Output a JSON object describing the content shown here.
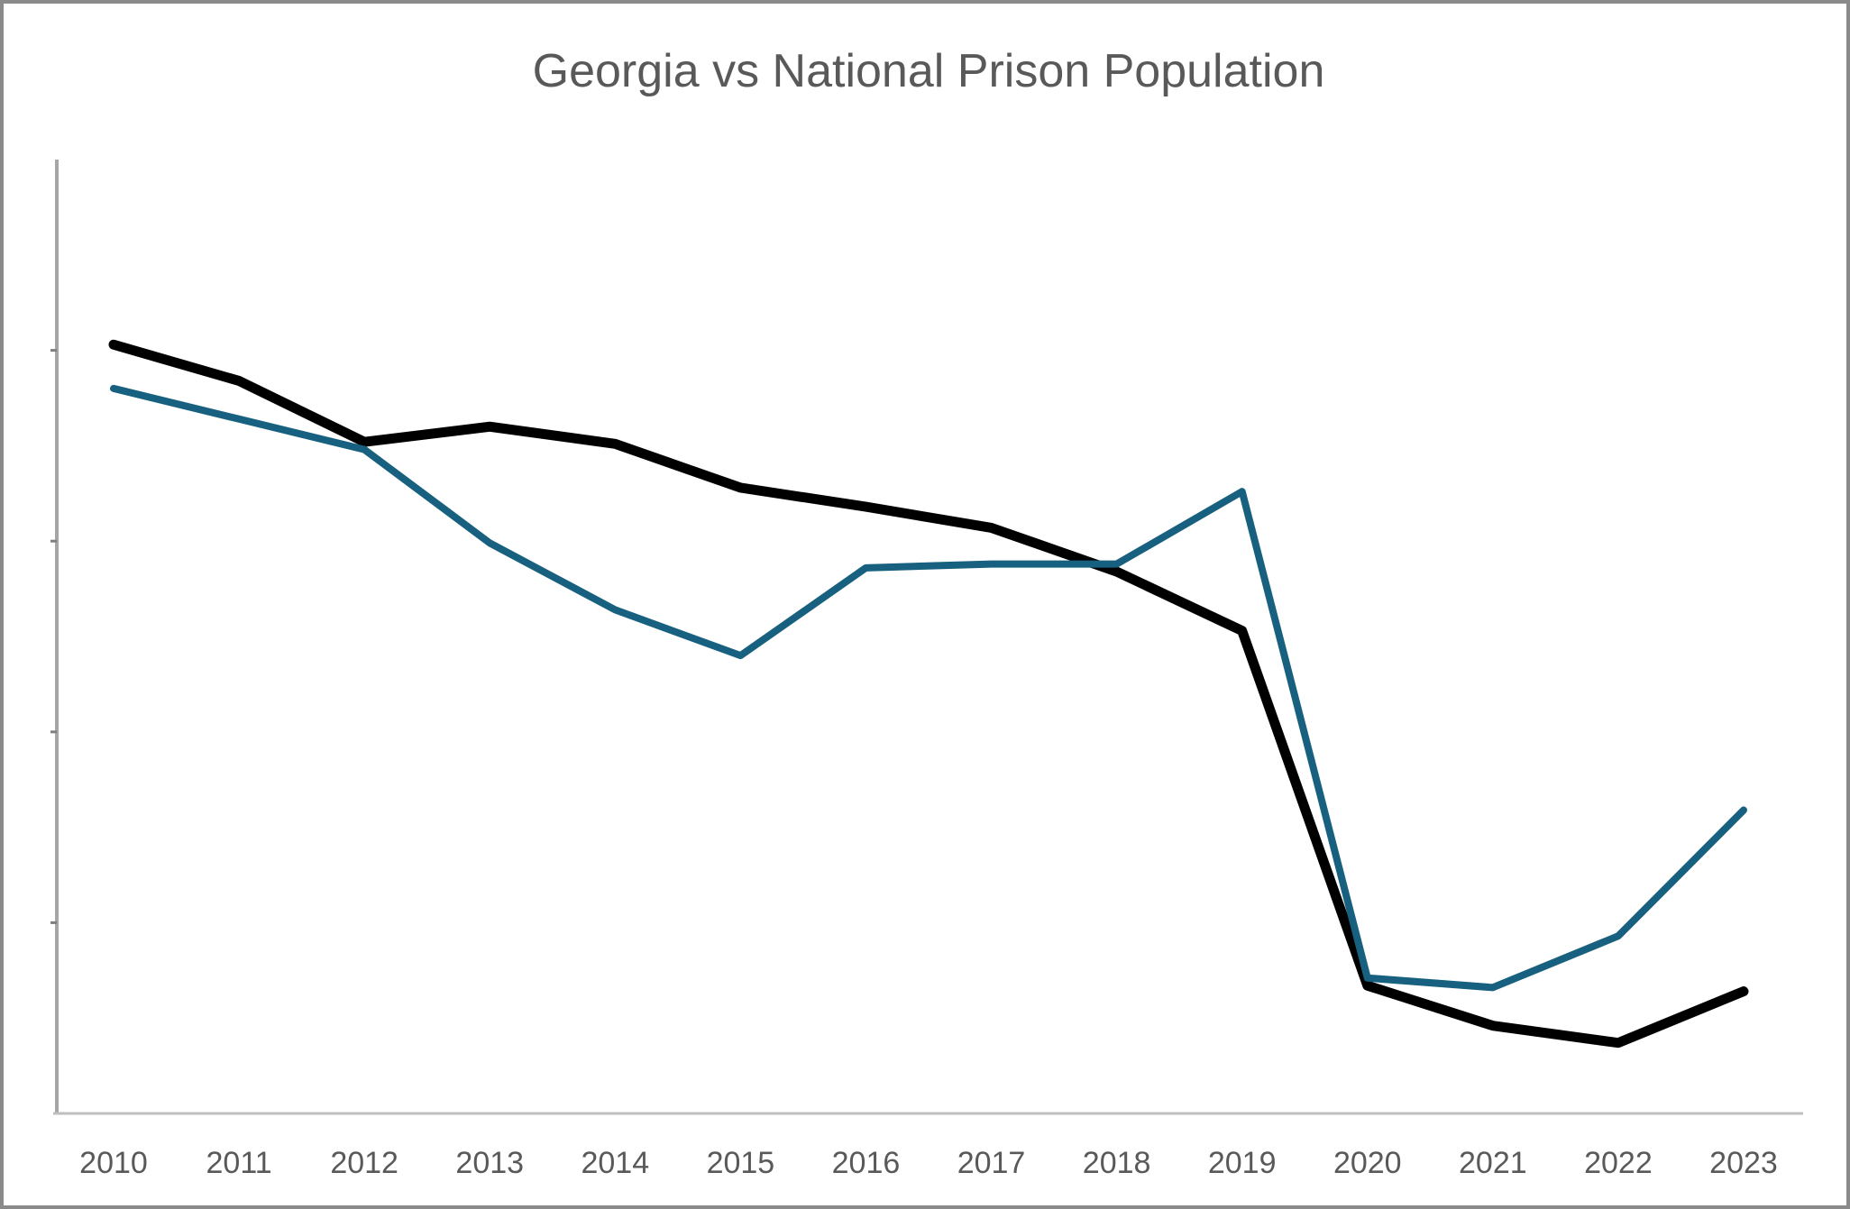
{
  "chart_data": {
    "type": "line",
    "title": "Georgia vs National Prison Population",
    "xlabel": "",
    "ylabel": "",
    "categories": [
      "2010",
      "2011",
      "2012",
      "2013",
      "2014",
      "2015",
      "2016",
      "2017",
      "2018",
      "2019",
      "2020",
      "2021",
      "2022",
      "2023"
    ],
    "y_tick_labels_shown": false,
    "ylim": [
      0,
      5
    ],
    "y_ticks": [
      1,
      2,
      3,
      4
    ],
    "grid": false,
    "legend": "none",
    "series": [
      {
        "color": "#000000",
        "values": [
          4.03,
          3.84,
          3.52,
          3.6,
          3.51,
          3.28,
          3.18,
          3.07,
          2.84,
          2.53,
          0.67,
          0.46,
          0.37,
          0.64
        ]
      },
      {
        "color": "#17607f",
        "values": [
          3.8,
          3.64,
          3.48,
          2.99,
          2.64,
          2.4,
          2.86,
          2.88,
          2.88,
          3.26,
          0.71,
          0.66,
          0.93,
          1.59
        ]
      }
    ]
  }
}
